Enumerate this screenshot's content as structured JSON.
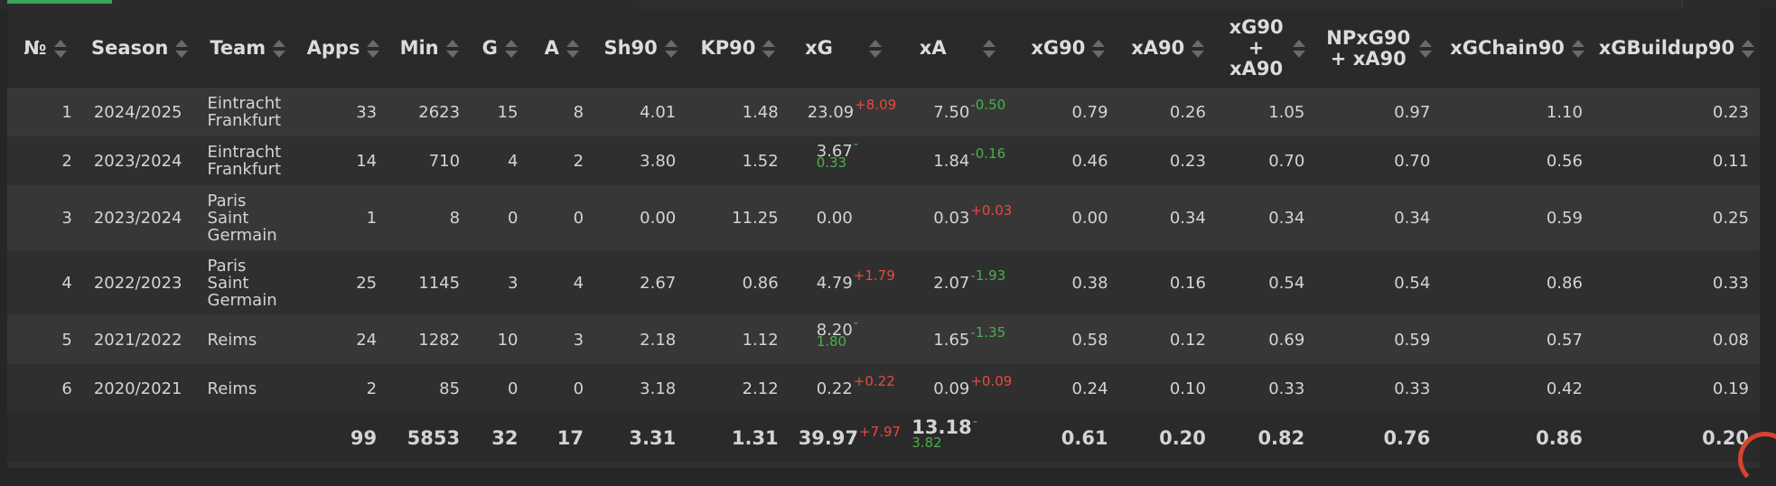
{
  "columns": [
    {
      "label": "№"
    },
    {
      "label": "Season"
    },
    {
      "label": "Team"
    },
    {
      "label": "Apps"
    },
    {
      "label": "Min"
    },
    {
      "label": "G"
    },
    {
      "label": "A"
    },
    {
      "label": "Sh90"
    },
    {
      "label": "KP90"
    },
    {
      "label": "xG"
    },
    {
      "label": "xA"
    },
    {
      "label": "xG90"
    },
    {
      "label": "xA90"
    },
    {
      "label": "xG90 + xA90"
    },
    {
      "label": "NPxG90 + xA90"
    },
    {
      "label": "xGChain90"
    },
    {
      "label": "xGBuildup90"
    }
  ],
  "rows": [
    {
      "n": "1",
      "season": "2024/2025",
      "team": "Eintracht Frankfurt",
      "apps": "33",
      "min": "2623",
      "g": "15",
      "a": "8",
      "sh90": "4.01",
      "kp90": "1.48",
      "xg": "23.09",
      "xg_diff": "+8.09",
      "xa": "7.50",
      "xa_diff": "-0.50",
      "xg90": "0.79",
      "xa90": "0.26",
      "xgxa90": "1.05",
      "npxgxa90": "0.97",
      "xgchain90": "1.10",
      "xgbuildup90": "0.23"
    },
    {
      "n": "2",
      "season": "2023/2024",
      "team": "Eintracht Frankfurt",
      "apps": "14",
      "min": "710",
      "g": "4",
      "a": "2",
      "sh90": "3.80",
      "kp90": "1.52",
      "xg": "3.67",
      "xg_diff": "-0.33",
      "xa": "1.84",
      "xa_diff": "-0.16",
      "xg90": "0.46",
      "xa90": "0.23",
      "xgxa90": "0.70",
      "npxgxa90": "0.70",
      "xgchain90": "0.56",
      "xgbuildup90": "0.11"
    },
    {
      "n": "3",
      "season": "2023/2024",
      "team": "Paris Saint Germain",
      "apps": "1",
      "min": "8",
      "g": "0",
      "a": "0",
      "sh90": "0.00",
      "kp90": "11.25",
      "xg": "0.00",
      "xg_diff": "",
      "xa": "0.03",
      "xa_diff": "+0.03",
      "xg90": "0.00",
      "xa90": "0.34",
      "xgxa90": "0.34",
      "npxgxa90": "0.34",
      "xgchain90": "0.59",
      "xgbuildup90": "0.25"
    },
    {
      "n": "4",
      "season": "2022/2023",
      "team": "Paris Saint Germain",
      "apps": "25",
      "min": "1145",
      "g": "3",
      "a": "4",
      "sh90": "2.67",
      "kp90": "0.86",
      "xg": "4.79",
      "xg_diff": "+1.79",
      "xa": "2.07",
      "xa_diff": "-1.93",
      "xg90": "0.38",
      "xa90": "0.16",
      "xgxa90": "0.54",
      "npxgxa90": "0.54",
      "xgchain90": "0.86",
      "xgbuildup90": "0.33"
    },
    {
      "n": "5",
      "season": "2021/2022",
      "team": "Reims",
      "apps": "24",
      "min": "1282",
      "g": "10",
      "a": "3",
      "sh90": "2.18",
      "kp90": "1.12",
      "xg": "8.20",
      "xg_diff": "-1.80",
      "xa": "1.65",
      "xa_diff": "-1.35",
      "xg90": "0.58",
      "xa90": "0.12",
      "xgxa90": "0.69",
      "npxgxa90": "0.59",
      "xgchain90": "0.57",
      "xgbuildup90": "0.08"
    },
    {
      "n": "6",
      "season": "2020/2021",
      "team": "Reims",
      "apps": "2",
      "min": "85",
      "g": "0",
      "a": "0",
      "sh90": "3.18",
      "kp90": "2.12",
      "xg": "0.22",
      "xg_diff": "+0.22",
      "xa": "0.09",
      "xa_diff": "+0.09",
      "xg90": "0.24",
      "xa90": "0.10",
      "xgxa90": "0.33",
      "npxgxa90": "0.33",
      "xgchain90": "0.42",
      "xgbuildup90": "0.19"
    }
  ],
  "totals": {
    "apps": "99",
    "min": "5853",
    "g": "32",
    "a": "17",
    "sh90": "3.31",
    "kp90": "1.31",
    "xg": "39.97",
    "xg_diff": "+7.97",
    "xa": "13.18",
    "xa_diff": "-3.82",
    "xg90": "0.61",
    "xa90": "0.20",
    "xgxa90": "0.82",
    "npxgxa90": "0.76",
    "xgchain90": "0.86",
    "xgbuildup90": "0.20"
  },
  "colors": {
    "positive": "#e84a3c",
    "negative": "#49b04c",
    "accent": "#3aa356"
  }
}
